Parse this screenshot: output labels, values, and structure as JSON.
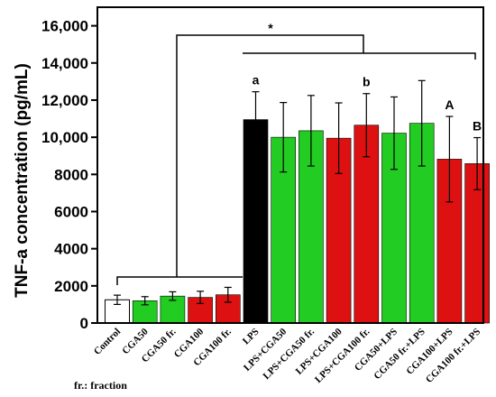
{
  "chart_data": {
    "type": "bar",
    "ylabel": "TNF-a concentration (pg/mL)",
    "ylim": [
      0,
      17000
    ],
    "yticks": [
      0,
      2000,
      4000,
      6000,
      8000,
      10000,
      12000,
      14000,
      16000
    ],
    "ytick_labels": [
      "0",
      "2000",
      "4000",
      "6000",
      "8000",
      "10,000",
      "12,000",
      "14,000",
      "16,000"
    ],
    "categories": [
      "Control",
      "CGA50",
      "CGA50 fr.",
      "CGA100",
      "CGA100 fr.",
      "LPS",
      "LPS+CGA50",
      "LPS+CGA50 fr.",
      "LPS+CGA100",
      "LPS+CGA100 fr.",
      "CGA50+LPS",
      "CGA50 fr.+LPS",
      "CGA100+LPS",
      "CGA100 fr.+LPS"
    ],
    "values": [
      1250,
      1200,
      1450,
      1380,
      1520,
      10950,
      10000,
      10350,
      9950,
      10650,
      10220,
      10750,
      8820,
      8580
    ],
    "errors": [
      250,
      220,
      230,
      330,
      400,
      1500,
      1870,
      1900,
      1900,
      1700,
      1950,
      2300,
      2300,
      1400
    ],
    "colors": [
      "#ffffff",
      "#22cc22",
      "#22cc22",
      "#dd1111",
      "#dd1111",
      "#000000",
      "#22cc22",
      "#22cc22",
      "#dd1111",
      "#dd1111",
      "#22cc22",
      "#22cc22",
      "#dd1111",
      "#dd1111"
    ],
    "bar_letters": {
      "LPS": "a",
      "LPS+CGA100 fr.": "b",
      "CGA100+LPS": "A",
      "CGA100 fr.+LPS": "B"
    },
    "significance": "*",
    "grid": false,
    "legend": false
  },
  "footnote": "fr.: fraction"
}
